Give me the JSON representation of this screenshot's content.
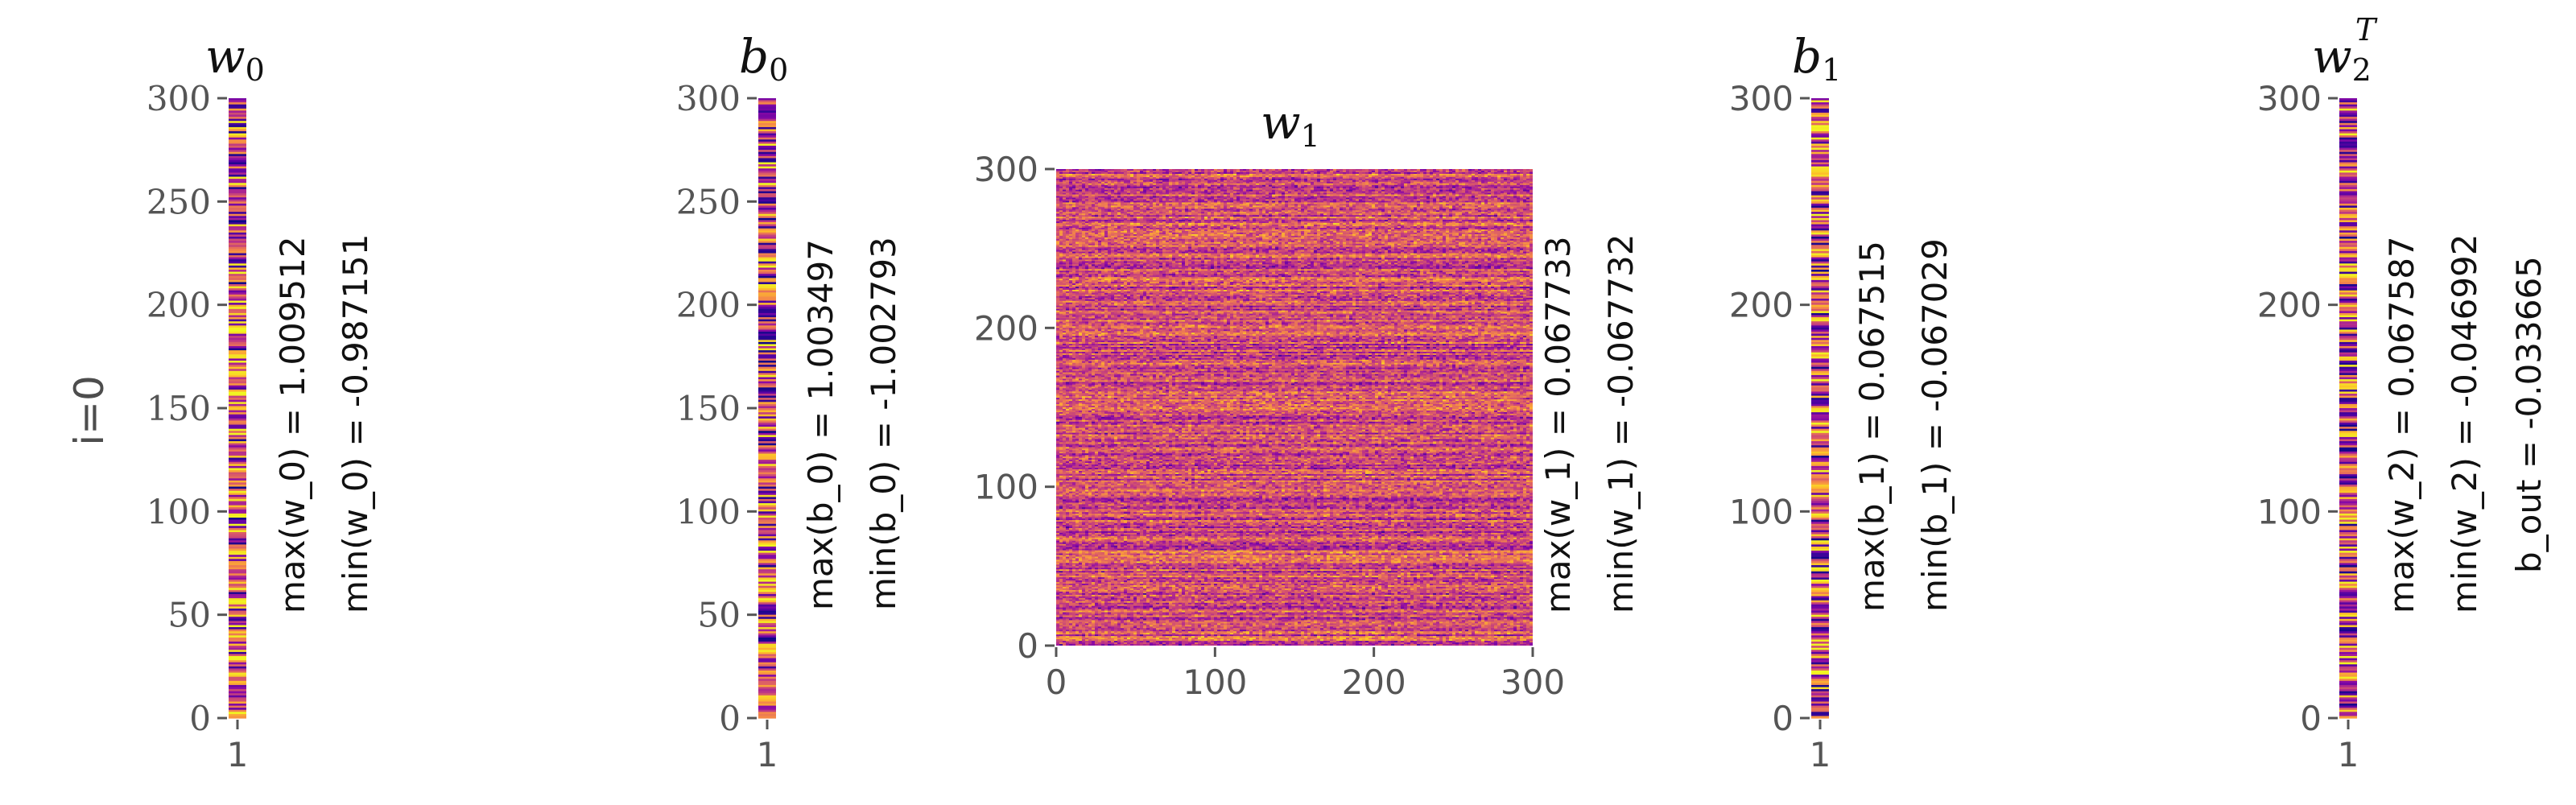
{
  "row_label": "i=0",
  "chart_data": [
    {
      "type": "heatmap",
      "title": "w_0",
      "title_base": "w",
      "title_sub": "0",
      "title_sup": "",
      "x_ticks": [
        "1"
      ],
      "y_ticks": [
        "0",
        "50",
        "100",
        "150",
        "200",
        "250",
        "300"
      ],
      "ylim": [
        0,
        300
      ],
      "colormap": "plasma",
      "value_range": [
        -0.987151,
        1.009512
      ],
      "stats": [
        "max(w_0) = 1.009512",
        "min(w_0) = -0.987151"
      ]
    },
    {
      "type": "heatmap",
      "title": "b_0",
      "title_base": "b",
      "title_sub": "0",
      "title_sup": "",
      "x_ticks": [
        "1"
      ],
      "y_ticks": [
        "0",
        "50",
        "100",
        "150",
        "200",
        "250",
        "300"
      ],
      "ylim": [
        0,
        300
      ],
      "colormap": "plasma",
      "value_range": [
        -1.002793,
        1.003497
      ],
      "stats": [
        "max(b_0) = 1.003497",
        "min(b_0) = -1.002793"
      ]
    },
    {
      "type": "heatmap",
      "title": "w_1",
      "title_base": "w",
      "title_sub": "1",
      "title_sup": "",
      "x_ticks": [
        "0",
        "100",
        "200",
        "300"
      ],
      "y_ticks": [
        "0",
        "100",
        "200",
        "300"
      ],
      "xlim": [
        0,
        300
      ],
      "ylim": [
        0,
        300
      ],
      "colormap": "plasma",
      "value_range": [
        -0.067732,
        0.067733
      ],
      "stats": [
        "max(w_1) = 0.067733",
        "min(w_1) = -0.067732"
      ]
    },
    {
      "type": "heatmap",
      "title": "b_1",
      "title_base": "b",
      "title_sub": "1",
      "title_sup": "",
      "x_ticks": [
        "1"
      ],
      "y_ticks": [
        "0",
        "100",
        "200",
        "300"
      ],
      "ylim": [
        0,
        300
      ],
      "colormap": "plasma",
      "value_range": [
        -0.067029,
        0.067515
      ],
      "stats": [
        "max(b_1) = 0.067515",
        "min(b_1) = -0.067029"
      ]
    },
    {
      "type": "heatmap",
      "title": "w_2^T",
      "title_base": "w",
      "title_sub": "2",
      "title_sup": "T",
      "x_ticks": [
        "1"
      ],
      "y_ticks": [
        "0",
        "100",
        "200",
        "300"
      ],
      "ylim": [
        0,
        300
      ],
      "colormap": "plasma",
      "value_range": [
        -0.046992,
        0.067587
      ],
      "stats": [
        "max(w_2) = 0.067587",
        "min(w_2) = -0.046992",
        "b_out = -0.033665"
      ]
    }
  ]
}
